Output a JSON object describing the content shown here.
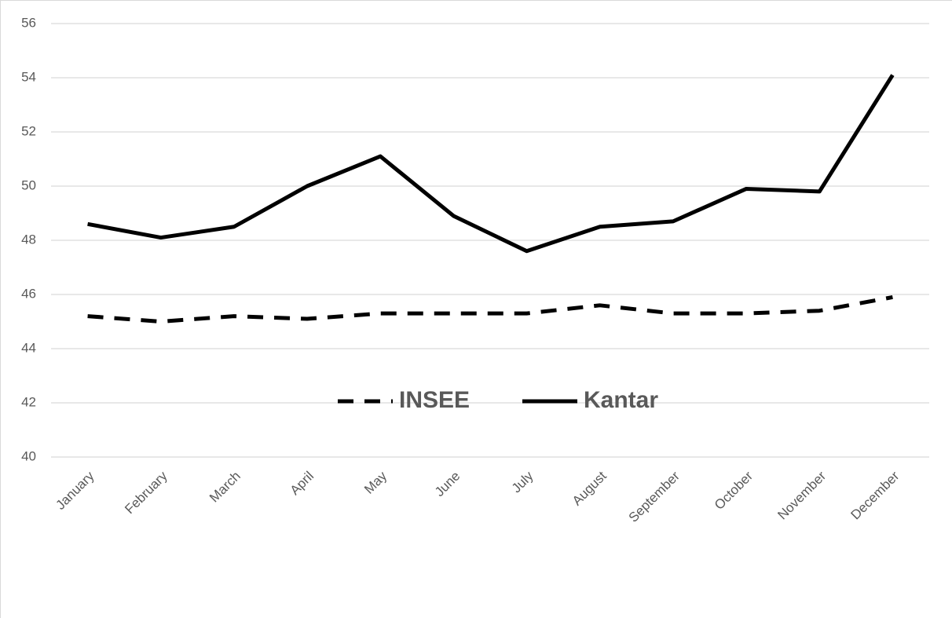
{
  "chart_data": {
    "type": "line",
    "categories": [
      "January",
      "February",
      "March",
      "April",
      "May",
      "June",
      "July",
      "August",
      "September",
      "October",
      "November",
      "December"
    ],
    "series": [
      {
        "name": "INSEE",
        "color": "#000000",
        "line_style": "dashed",
        "values": [
          45.2,
          45.0,
          45.2,
          45.1,
          45.3,
          45.3,
          45.3,
          45.6,
          45.3,
          45.3,
          45.4,
          45.9
        ]
      },
      {
        "name": "Kantar",
        "color": "#000000",
        "line_style": "solid",
        "values": [
          48.6,
          48.1,
          48.5,
          50.0,
          51.1,
          48.9,
          47.6,
          48.5,
          48.7,
          49.9,
          49.8,
          54.1
        ]
      }
    ],
    "ylim": [
      40,
      56
    ],
    "yticks": [
      40,
      42,
      44,
      46,
      48,
      50,
      52,
      54,
      56
    ],
    "grid": true,
    "legend": "center"
  }
}
